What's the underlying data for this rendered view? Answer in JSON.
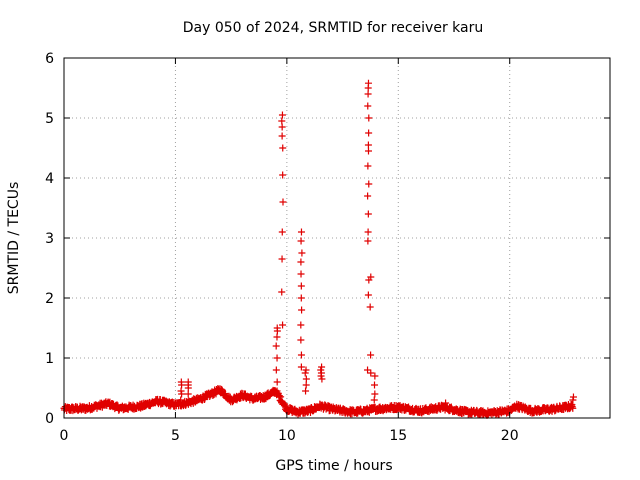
{
  "chart_data": {
    "type": "scatter",
    "title": "Day 050 of 2024, SRMTID for receiver karu",
    "xlabel": "GPS time / hours",
    "ylabel": "SRMTID / TECUs",
    "xlim": [
      0,
      24.5
    ],
    "ylim": [
      0,
      6
    ],
    "xticks": [
      0,
      5,
      10,
      15,
      20
    ],
    "yticks": [
      0,
      1,
      2,
      3,
      4,
      5,
      6
    ],
    "grid": true,
    "marker": "+",
    "color": "#e00000",
    "baseline": [
      [
        0.0,
        0.15
      ],
      [
        1.0,
        0.16
      ],
      [
        2.0,
        0.24
      ],
      [
        2.5,
        0.16
      ],
      [
        3.5,
        0.2
      ],
      [
        4.2,
        0.28
      ],
      [
        5.0,
        0.22
      ],
      [
        5.5,
        0.25
      ],
      [
        6.0,
        0.3
      ],
      [
        6.5,
        0.38
      ],
      [
        7.0,
        0.47
      ],
      [
        7.5,
        0.3
      ],
      [
        8.0,
        0.38
      ],
      [
        8.5,
        0.32
      ],
      [
        9.0,
        0.35
      ],
      [
        9.5,
        0.45
      ],
      [
        10.0,
        0.15
      ],
      [
        10.5,
        0.1
      ],
      [
        11.0,
        0.12
      ],
      [
        11.5,
        0.2
      ],
      [
        12.0,
        0.15
      ],
      [
        12.5,
        0.12
      ],
      [
        13.0,
        0.1
      ],
      [
        13.5,
        0.12
      ],
      [
        14.0,
        0.15
      ],
      [
        15.0,
        0.18
      ],
      [
        16.0,
        0.12
      ],
      [
        17.0,
        0.18
      ],
      [
        18.0,
        0.1
      ],
      [
        19.0,
        0.08
      ],
      [
        20.0,
        0.12
      ],
      [
        20.3,
        0.2
      ],
      [
        21.0,
        0.12
      ],
      [
        22.0,
        0.15
      ],
      [
        22.5,
        0.18
      ],
      [
        22.85,
        0.2
      ]
    ],
    "spikes": [
      {
        "x": 5.25,
        "values": [
          0.2,
          0.3,
          0.4,
          0.55,
          0.6,
          0.45
        ]
      },
      {
        "x": 5.6,
        "values": [
          0.25,
          0.4,
          0.55,
          0.6,
          0.5
        ]
      },
      {
        "x": 9.55,
        "values": [
          0.4,
          0.6,
          0.8,
          1.0,
          1.2,
          1.35,
          1.45,
          1.5
        ]
      },
      {
        "x": 9.8,
        "values": [
          1.55,
          2.1,
          2.65,
          3.1,
          3.6,
          4.05,
          4.5,
          4.7,
          4.85,
          4.95,
          5.05
        ]
      },
      {
        "x": 10.65,
        "values": [
          3.1,
          2.95,
          2.75,
          2.6,
          2.4,
          2.2,
          2.0,
          1.8,
          1.55,
          1.3,
          1.05,
          0.85
        ]
      },
      {
        "x": 10.85,
        "values": [
          0.8,
          0.75,
          0.65,
          0.55,
          0.45
        ]
      },
      {
        "x": 11.55,
        "values": [
          0.85,
          0.8,
          0.75,
          0.7,
          0.65
        ]
      },
      {
        "x": 13.65,
        "values": [
          0.8,
          2.05,
          2.3,
          2.95,
          3.1,
          3.4,
          3.7,
          3.9,
          4.2,
          4.45,
          4.55,
          4.75,
          5.0,
          5.2,
          5.4,
          5.5,
          5.58
        ]
      },
      {
        "x": 13.75,
        "values": [
          1.85,
          2.35,
          1.05,
          0.75
        ]
      },
      {
        "x": 13.95,
        "values": [
          0.7,
          0.55,
          0.4,
          0.3
        ]
      },
      {
        "x": 17.1,
        "values": [
          0.25,
          0.2
        ]
      },
      {
        "x": 22.85,
        "values": [
          0.35,
          0.3
        ]
      }
    ]
  }
}
